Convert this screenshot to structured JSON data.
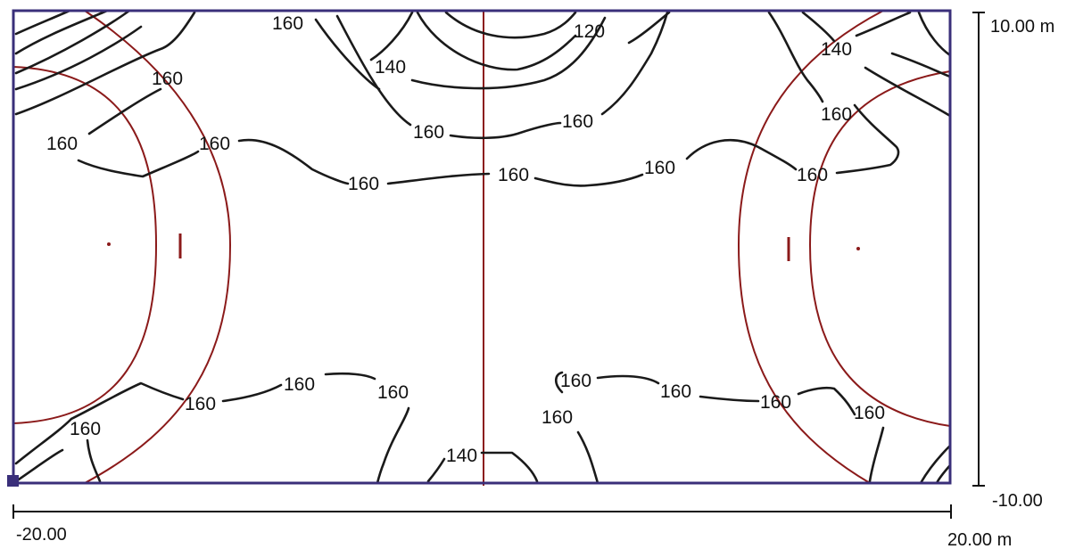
{
  "contour_labels": [
    "160",
    "120",
    "140",
    "160",
    "160",
    "160",
    "160",
    "160",
    "160",
    "160",
    "140",
    "160",
    "160",
    "160",
    "160",
    "160",
    "160",
    "160",
    "160",
    "160",
    "160",
    "160",
    "160",
    "160",
    "140"
  ],
  "axes": {
    "y_top": "10.00 m",
    "y_bottom": "-10.00",
    "x_left": "-20.00",
    "x_right": "20.00 m"
  },
  "colors": {
    "contour": "#1a1a1a",
    "court_lines": "#8b1a1a",
    "frame": "#3a2f7a"
  }
}
